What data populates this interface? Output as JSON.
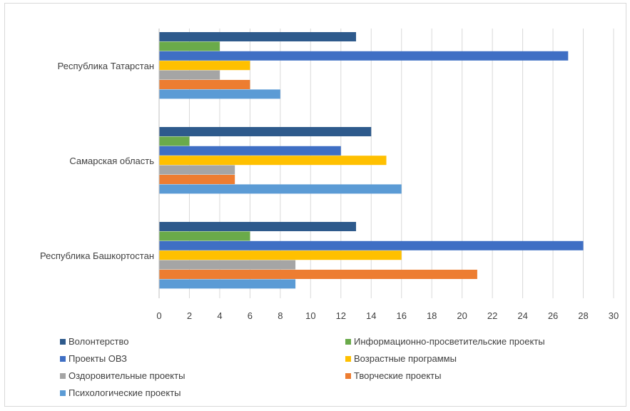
{
  "chart_data": {
    "type": "bar",
    "orientation": "horizontal",
    "title": "",
    "xlabel": "",
    "ylabel": "",
    "xlim": [
      0,
      30
    ],
    "x_ticks": [
      0,
      2,
      4,
      6,
      8,
      10,
      12,
      14,
      16,
      18,
      20,
      22,
      24,
      26,
      28,
      30
    ],
    "grid": "vertical",
    "legend_position": "bottom",
    "categories": [
      "Республика Татарстан",
      "Самарская область",
      "Республика Башкортостан"
    ],
    "series": [
      {
        "name": "Волонтерство",
        "color": "#2e5a8c",
        "values": [
          13,
          14,
          13
        ]
      },
      {
        "name": "Информационно-просветительские проекты",
        "color": "#6aaa4a",
        "values": [
          4,
          2,
          6
        ]
      },
      {
        "name": "Проекты  ОВЗ",
        "color": "#3f6fc4",
        "values": [
          27,
          12,
          28
        ]
      },
      {
        "name": "Возрастные программы",
        "color": "#ffc000",
        "values": [
          6,
          15,
          16
        ]
      },
      {
        "name": "Оздоровительные проекты",
        "color": "#a5a5a5",
        "values": [
          4,
          5,
          9
        ]
      },
      {
        "name": "Творческие проекты",
        "color": "#ed7d31",
        "values": [
          6,
          5,
          21
        ]
      },
      {
        "name": "Психологические проекты",
        "color": "#5b9bd5",
        "values": [
          8,
          16,
          9
        ]
      }
    ]
  }
}
